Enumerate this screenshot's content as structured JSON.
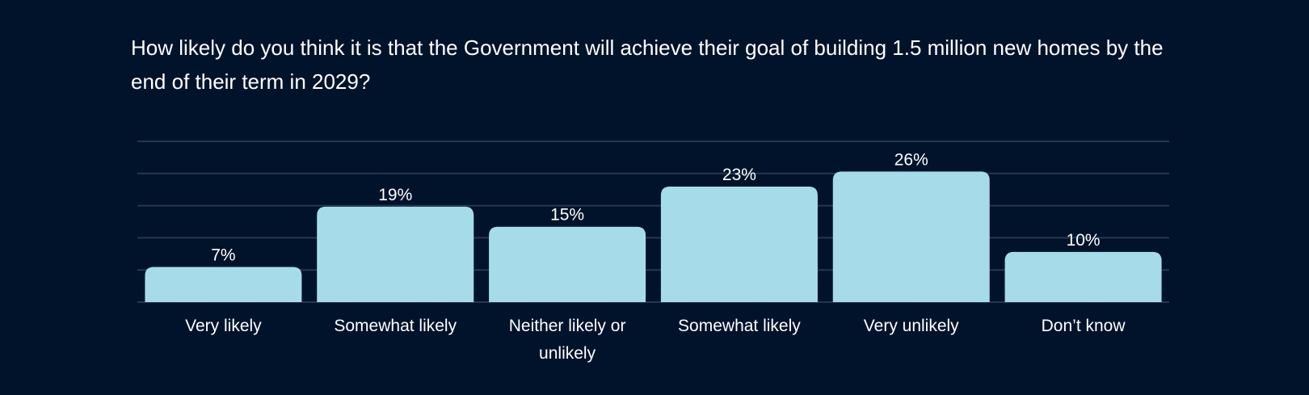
{
  "chart_data": {
    "type": "bar",
    "title": "How likely do you think it is that the Government will achieve their goal of building 1.5 million new homes by the end of their term in 2029?",
    "categories": [
      [
        "Very likely"
      ],
      [
        "Somewhat likely"
      ],
      [
        "Neither likely or",
        "unlikely"
      ],
      [
        "Somewhat likely"
      ],
      [
        "Very unlikely"
      ],
      [
        "Don’t know"
      ]
    ],
    "values": [
      7,
      19,
      15,
      23,
      26,
      10
    ],
    "value_labels": [
      "7%",
      "19%",
      "15%",
      "23%",
      "26%",
      "10%"
    ],
    "unit": "%",
    "ylim": [
      0,
      32
    ],
    "gridlines": [
      0,
      6.4,
      12.8,
      19.2,
      25.6,
      32
    ],
    "xlabel": "",
    "ylabel": "",
    "legend": "none",
    "colors": {
      "background": "#00132b",
      "bar": "#a6dce9",
      "grid": "#26384f",
      "text": "#ffffff"
    }
  }
}
